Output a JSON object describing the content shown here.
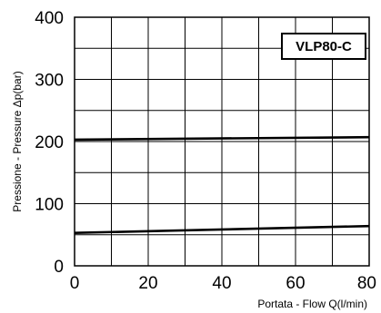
{
  "chart_data": {
    "type": "line",
    "title": "",
    "badge": "VLP80-C",
    "xlabel": "Portata - Flow Q(l/min)",
    "ylabel": "Pressione - Pressure Δp(bar)",
    "xlim": [
      0,
      80
    ],
    "ylim": [
      0,
      400
    ],
    "x_ticks": [
      0,
      20,
      40,
      60,
      80
    ],
    "y_ticks": [
      0,
      100,
      200,
      300,
      400
    ],
    "x_gridlines": [
      0,
      10,
      20,
      30,
      40,
      50,
      60,
      70,
      80
    ],
    "y_gridlines": [
      0,
      50,
      100,
      150,
      200,
      250,
      300,
      350,
      400
    ],
    "grid": true,
    "series": [
      {
        "x": [
          0,
          80
        ],
        "y": [
          53,
          64
        ]
      },
      {
        "x": [
          0,
          80
        ],
        "y": [
          203,
          207
        ]
      }
    ],
    "line_color": "#000000",
    "grid_color": "#000000"
  }
}
